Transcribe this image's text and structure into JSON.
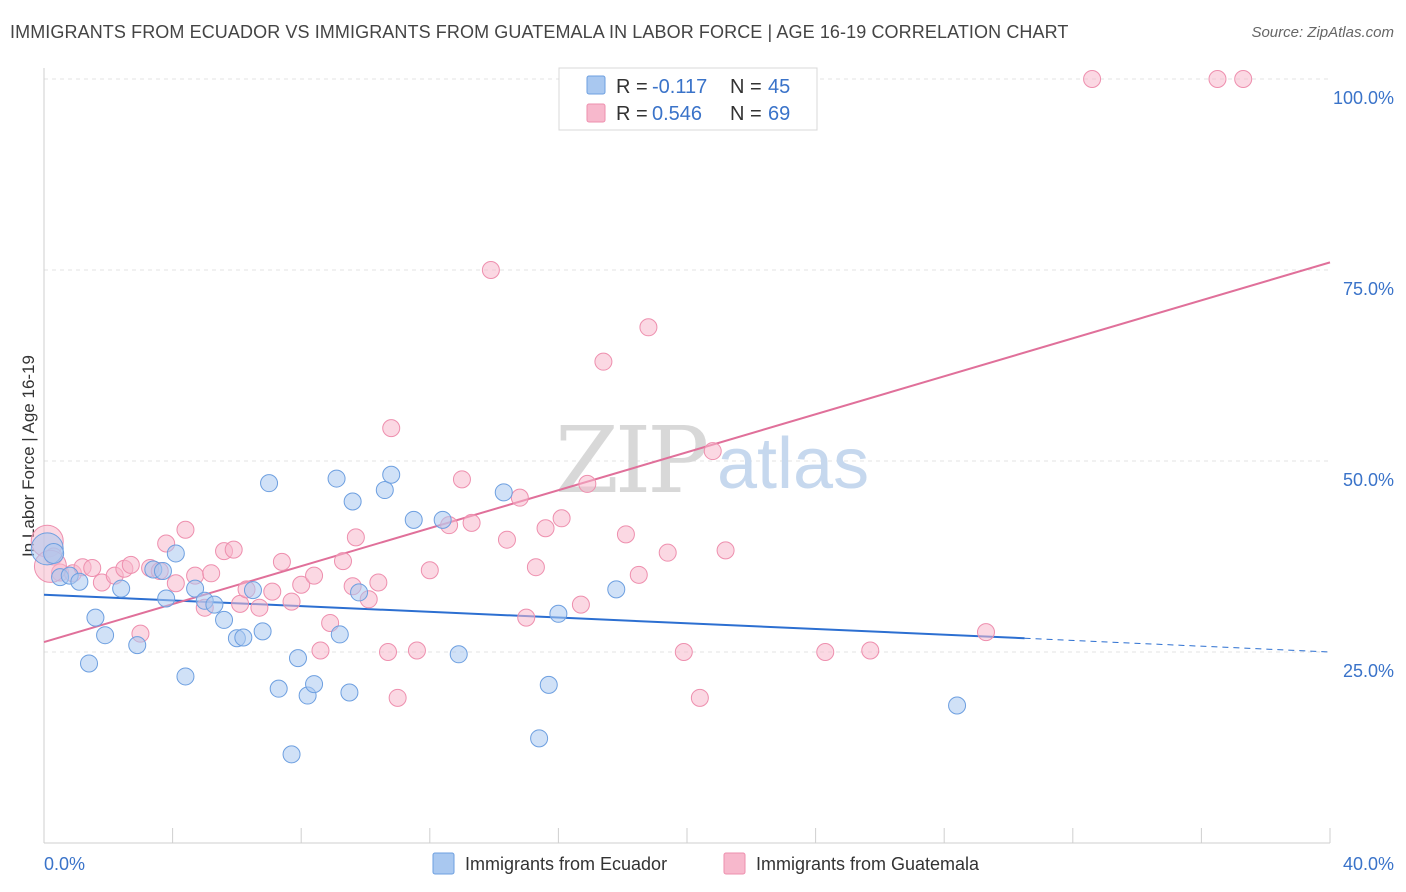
{
  "header": {
    "title": "IMMIGRANTS FROM ECUADOR VS IMMIGRANTS FROM GUATEMALA IN LABOR FORCE | AGE 16-19 CORRELATION CHART",
    "source": "Source: ZipAtlas.com"
  },
  "watermark": {
    "zip": "ZIP",
    "atlas": "atlas"
  },
  "legend_top": {
    "rows": [
      {
        "r_label": "R =",
        "r_value": "-0.117",
        "n_label": "N =",
        "n_value": "45",
        "color": "#a9c8f0"
      },
      {
        "r_label": "R =",
        "r_value": "0.546",
        "n_label": "N =",
        "n_value": "69",
        "color": "#f7b8cc"
      }
    ]
  },
  "legend_bottom": {
    "items": [
      {
        "label": "Immigrants from Ecuador",
        "color": "#a9c8f0"
      },
      {
        "label": "Immigrants from Guatemala",
        "color": "#f7b8cc"
      }
    ]
  },
  "chart_data": {
    "type": "scatter",
    "ylabel": "In Labor Force | Age 16-19",
    "xlabel": "",
    "xlim": [
      0,
      40
    ],
    "ylim": [
      0,
      105
    ],
    "x_tick_labels": [
      "0.0%",
      "40.0%"
    ],
    "y_tick_values": [
      25,
      50,
      75,
      100
    ],
    "y_tick_labels": [
      "25.0%",
      "50.0%",
      "75.0%",
      "100.0%"
    ],
    "grid": true,
    "legend_position": "top-center",
    "series": [
      {
        "name": "Immigrants from Ecuador",
        "color": "#a9c8f0",
        "stroke": "#6d9fe0",
        "line_color": "#2c6fd1",
        "trend": {
          "x0": 0,
          "y0": 32.5,
          "x1": 30.5,
          "y1": 26.8,
          "dash_to_x": 40,
          "dash_to_y": 25.0
        },
        "points": [
          [
            0.1,
            38.5
          ],
          [
            0.5,
            34.8
          ],
          [
            0.8,
            35.0
          ],
          [
            1.1,
            34.2
          ],
          [
            1.6,
            29.5
          ],
          [
            1.9,
            27.2
          ],
          [
            1.4,
            23.5
          ],
          [
            2.4,
            33.3
          ],
          [
            2.9,
            25.9
          ],
          [
            3.4,
            35.8
          ],
          [
            3.7,
            35.6
          ],
          [
            3.8,
            32.0
          ],
          [
            4.1,
            37.9
          ],
          [
            4.4,
            21.8
          ],
          [
            4.7,
            33.3
          ],
          [
            5.0,
            31.7
          ],
          [
            5.3,
            31.2
          ],
          [
            5.6,
            29.2
          ],
          [
            6.0,
            26.8
          ],
          [
            6.2,
            26.9
          ],
          [
            6.5,
            33.1
          ],
          [
            6.8,
            27.7
          ],
          [
            7.0,
            47.1
          ],
          [
            7.3,
            20.2
          ],
          [
            7.7,
            11.6
          ],
          [
            7.9,
            24.2
          ],
          [
            8.2,
            19.3
          ],
          [
            8.4,
            20.8
          ],
          [
            9.1,
            47.7
          ],
          [
            9.2,
            27.3
          ],
          [
            9.5,
            19.7
          ],
          [
            9.6,
            44.7
          ],
          [
            9.8,
            32.8
          ],
          [
            10.6,
            46.2
          ],
          [
            10.8,
            48.2
          ],
          [
            11.5,
            42.3
          ],
          [
            12.4,
            42.3
          ],
          [
            12.9,
            24.7
          ],
          [
            14.3,
            45.9
          ],
          [
            15.4,
            13.7
          ],
          [
            15.7,
            20.7
          ],
          [
            16.0,
            30.0
          ],
          [
            17.8,
            33.2
          ],
          [
            28.4,
            18.0
          ],
          [
            0.3,
            37.9
          ]
        ]
      },
      {
        "name": "Immigrants from Guatemala",
        "color": "#f7b8cc",
        "stroke": "#ee8fae",
        "line_color": "#e0709a",
        "trend": {
          "x0": 0,
          "y0": 26.3,
          "x1": 40,
          "y1": 76.0
        },
        "points": [
          [
            0.1,
            39.5
          ],
          [
            0.3,
            37.5
          ],
          [
            0.5,
            35.4
          ],
          [
            0.9,
            35.3
          ],
          [
            1.2,
            36.1
          ],
          [
            1.5,
            36.0
          ],
          [
            1.8,
            34.1
          ],
          [
            2.2,
            35.0
          ],
          [
            2.5,
            35.9
          ],
          [
            2.7,
            36.4
          ],
          [
            3.0,
            27.4
          ],
          [
            3.3,
            36.0
          ],
          [
            3.6,
            35.6
          ],
          [
            3.8,
            39.2
          ],
          [
            4.1,
            34.0
          ],
          [
            4.4,
            41.0
          ],
          [
            4.7,
            35.0
          ],
          [
            5.0,
            30.8
          ],
          [
            5.2,
            35.3
          ],
          [
            5.6,
            38.2
          ],
          [
            5.9,
            38.4
          ],
          [
            6.1,
            31.3
          ],
          [
            6.3,
            33.2
          ],
          [
            6.7,
            30.8
          ],
          [
            7.1,
            32.9
          ],
          [
            7.4,
            36.8
          ],
          [
            7.7,
            31.6
          ],
          [
            8.0,
            33.8
          ],
          [
            8.4,
            35.0
          ],
          [
            8.6,
            25.2
          ],
          [
            8.9,
            28.8
          ],
          [
            9.3,
            36.9
          ],
          [
            9.6,
            33.6
          ],
          [
            9.7,
            40.0
          ],
          [
            10.1,
            31.9
          ],
          [
            10.4,
            34.1
          ],
          [
            10.7,
            25.0
          ],
          [
            11.0,
            19.0
          ],
          [
            10.8,
            54.3
          ],
          [
            11.6,
            25.2
          ],
          [
            12.0,
            35.7
          ],
          [
            12.6,
            41.6
          ],
          [
            13.0,
            47.6
          ],
          [
            13.3,
            41.9
          ],
          [
            13.9,
            75.0
          ],
          [
            14.4,
            39.7
          ],
          [
            14.8,
            45.2
          ],
          [
            15.0,
            29.5
          ],
          [
            15.3,
            36.1
          ],
          [
            15.6,
            41.2
          ],
          [
            16.1,
            42.5
          ],
          [
            16.7,
            31.2
          ],
          [
            16.9,
            47.0
          ],
          [
            17.4,
            63.0
          ],
          [
            18.1,
            40.4
          ],
          [
            18.5,
            35.1
          ],
          [
            18.8,
            67.5
          ],
          [
            19.4,
            38.0
          ],
          [
            19.9,
            25.0
          ],
          [
            20.4,
            19.0
          ],
          [
            20.8,
            51.3
          ],
          [
            21.2,
            38.3
          ],
          [
            24.3,
            25.0
          ],
          [
            25.7,
            25.2
          ],
          [
            29.3,
            27.6
          ],
          [
            32.6,
            100.0
          ],
          [
            36.5,
            100.0
          ],
          [
            37.3,
            100.0
          ],
          [
            0.2,
            36.2
          ]
        ]
      }
    ]
  }
}
